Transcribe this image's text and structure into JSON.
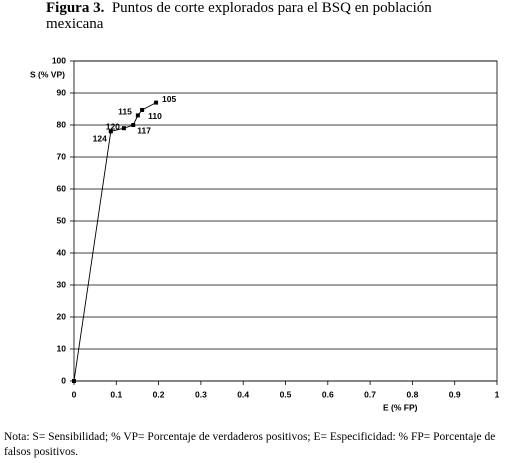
{
  "chart_data": {
    "type": "line",
    "figure_label": "Figura 3.",
    "title": "Puntos de corte explorados para el BSQ en población mexicana",
    "y_label": "S (% VP)",
    "x_label": "E (% FP)",
    "x": [
      0,
      0.087,
      0.118,
      0.14,
      0.151,
      0.161,
      0.194
    ],
    "y": [
      0,
      78,
      79,
      80,
      83,
      84.7,
      87
    ],
    "point_labels": [
      null,
      124,
      120,
      117,
      115,
      110,
      105
    ],
    "color": "#000000",
    "xlim": [
      0,
      1
    ],
    "xticks": [
      0,
      0.1,
      0.2,
      0.3,
      0.4,
      0.5,
      0.6,
      0.7,
      0.8,
      0.9,
      1
    ],
    "ylim": [
      0,
      100
    ],
    "yticks": [
      0,
      10,
      20,
      30,
      40,
      50,
      60,
      70,
      80,
      90,
      100
    ],
    "grid": true,
    "note": "Nota: S= Sensibilidad; % VP= Porcentaje de verdaderos positivos; E= Especificidad: % FP= Porcentaje de falsos positivos."
  }
}
